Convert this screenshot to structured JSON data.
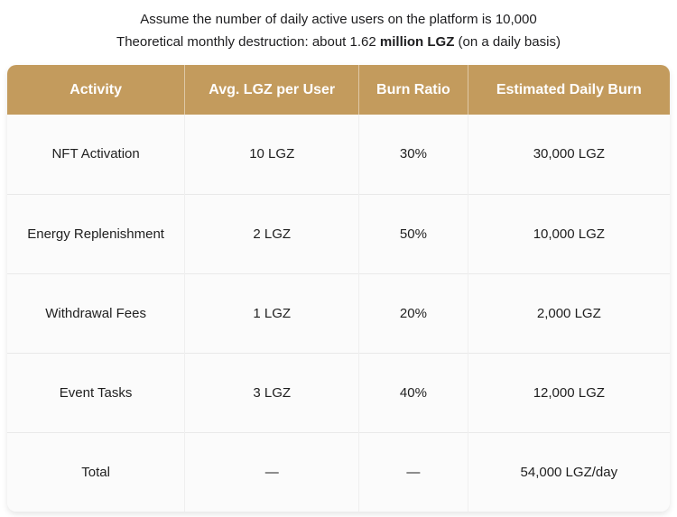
{
  "intro": {
    "line1": "Assume the number of daily active users on the platform is 10,000",
    "line2_prefix": "Theoretical monthly destruction: about 1.62 ",
    "line2_bold": "million LGZ",
    "line2_suffix": " (on a daily basis)"
  },
  "colors": {
    "header_bg": "#c39b5d",
    "header_text": "#ffffff",
    "cell_bg": "#fbfbfb",
    "row_border": "#e9e9e9"
  },
  "chart_data": {
    "type": "table",
    "title": "Assume the number of daily active users on the platform is 10,000 — Theoretical monthly destruction: about 1.62 million LGZ (on a daily basis)",
    "columns": [
      "Activity",
      "Avg. LGZ per User",
      "Burn Ratio",
      "Estimated Daily Burn"
    ],
    "rows": [
      [
        "NFT Activation",
        "10 LGZ",
        "30%",
        "30,000 LGZ"
      ],
      [
        "Energy Replenishment",
        "2 LGZ",
        "50%",
        "10,000 LGZ"
      ],
      [
        "Withdrawal Fees",
        "1 LGZ",
        "20%",
        "2,000 LGZ"
      ],
      [
        "Event Tasks",
        "3 LGZ",
        "40%",
        "12,000 LGZ"
      ],
      [
        "Total",
        "—",
        "—",
        "54,000 LGZ/day"
      ]
    ]
  }
}
